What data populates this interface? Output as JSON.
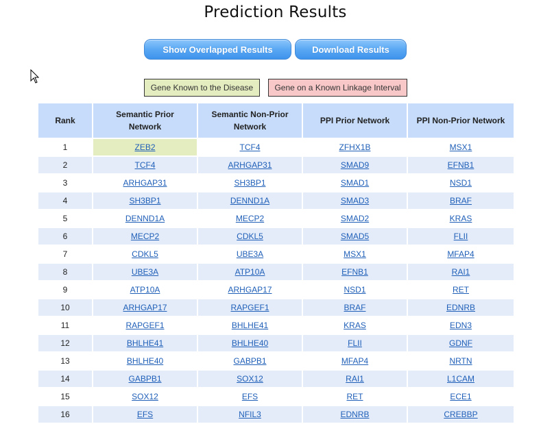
{
  "page": {
    "title": "Prediction Results"
  },
  "buttons": {
    "show_overlapped": "Show Overlapped Results",
    "download": "Download Results"
  },
  "legend": {
    "known_disease": "Gene Known to the Disease",
    "linkage_interval": "Gene on a Known Linkage Interval",
    "known_color": "#e4edc0",
    "linkage_color": "#f8c8c8"
  },
  "table": {
    "headers": {
      "rank": "Rank",
      "semantic_prior_line1": "Semantic Prior",
      "semantic_prior_line2": "Network",
      "semantic_nonprior_line1": "Semantic Non-Prior",
      "semantic_nonprior_line2": "Network",
      "ppi_prior": "PPI Prior Network",
      "ppi_nonprior": "PPI Non-Prior Network"
    },
    "rows": [
      {
        "rank": "1",
        "semantic_prior": "ZEB2",
        "semantic_nonprior": "TCF4",
        "ppi_prior": "ZFHX1B",
        "ppi_nonprior": "MSX1",
        "known": true
      },
      {
        "rank": "2",
        "semantic_prior": "TCF4",
        "semantic_nonprior": "ARHGAP31",
        "ppi_prior": "SMAD9",
        "ppi_nonprior": "EFNB1"
      },
      {
        "rank": "3",
        "semantic_prior": "ARHGAP31",
        "semantic_nonprior": "SH3BP1",
        "ppi_prior": "SMAD1",
        "ppi_nonprior": "NSD1"
      },
      {
        "rank": "4",
        "semantic_prior": "SH3BP1",
        "semantic_nonprior": "DENND1A",
        "ppi_prior": "SMAD3",
        "ppi_nonprior": "BRAF"
      },
      {
        "rank": "5",
        "semantic_prior": "DENND1A",
        "semantic_nonprior": "MECP2",
        "ppi_prior": "SMAD2",
        "ppi_nonprior": "KRAS"
      },
      {
        "rank": "6",
        "semantic_prior": "MECP2",
        "semantic_nonprior": "CDKL5",
        "ppi_prior": "SMAD5",
        "ppi_nonprior": "FLII"
      },
      {
        "rank": "7",
        "semantic_prior": "CDKL5",
        "semantic_nonprior": "UBE3A",
        "ppi_prior": "MSX1",
        "ppi_nonprior": "MFAP4"
      },
      {
        "rank": "8",
        "semantic_prior": "UBE3A",
        "semantic_nonprior": "ATP10A",
        "ppi_prior": "EFNB1",
        "ppi_nonprior": "RAI1"
      },
      {
        "rank": "9",
        "semantic_prior": "ATP10A",
        "semantic_nonprior": "ARHGAP17",
        "ppi_prior": "NSD1",
        "ppi_nonprior": "RET"
      },
      {
        "rank": "10",
        "semantic_prior": "ARHGAP17",
        "semantic_nonprior": "RAPGEF1",
        "ppi_prior": "BRAF",
        "ppi_nonprior": "EDNRB"
      },
      {
        "rank": "11",
        "semantic_prior": "RAPGEF1",
        "semantic_nonprior": "BHLHE41",
        "ppi_prior": "KRAS",
        "ppi_nonprior": "EDN3"
      },
      {
        "rank": "12",
        "semantic_prior": "BHLHE41",
        "semantic_nonprior": "BHLHE40",
        "ppi_prior": "FLII",
        "ppi_nonprior": "GDNF"
      },
      {
        "rank": "13",
        "semantic_prior": "BHLHE40",
        "semantic_nonprior": "GABPB1",
        "ppi_prior": "MFAP4",
        "ppi_nonprior": "NRTN"
      },
      {
        "rank": "14",
        "semantic_prior": "GABPB1",
        "semantic_nonprior": "SOX12",
        "ppi_prior": "RAI1",
        "ppi_nonprior": "L1CAM"
      },
      {
        "rank": "15",
        "semantic_prior": "SOX12",
        "semantic_nonprior": "EFS",
        "ppi_prior": "RET",
        "ppi_nonprior": "ECE1"
      },
      {
        "rank": "16",
        "semantic_prior": "EFS",
        "semantic_nonprior": "NFIL3",
        "ppi_prior": "EDNRB",
        "ppi_nonprior": "CREBBP"
      }
    ]
  },
  "icons": {
    "cursor": "mouse-pointer-icon"
  }
}
